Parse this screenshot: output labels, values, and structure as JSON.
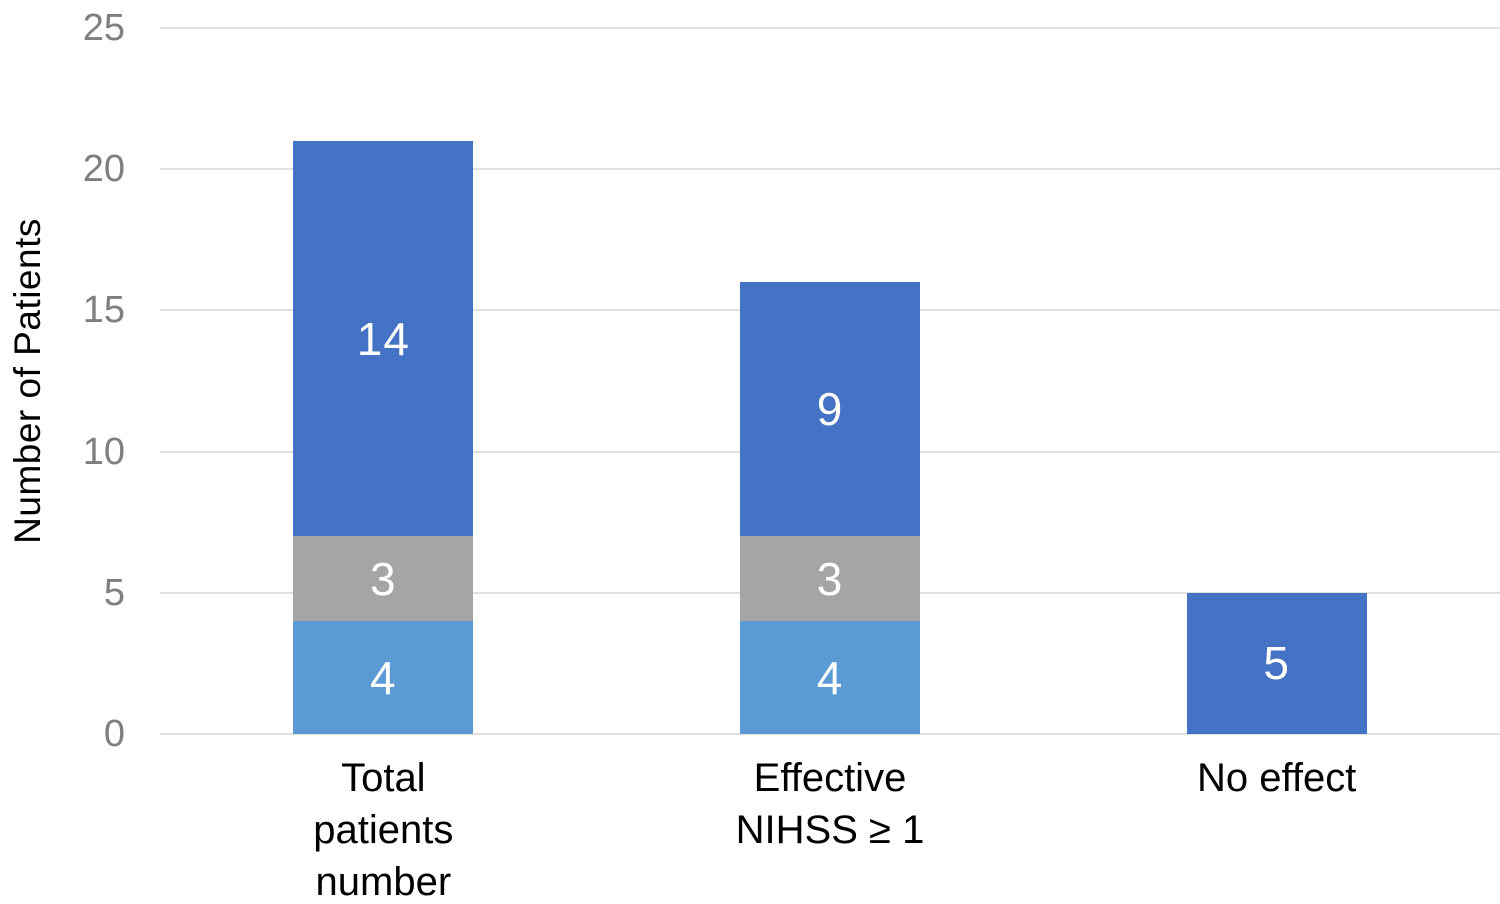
{
  "chart_data": {
    "type": "bar",
    "stacked": true,
    "title": "",
    "xlabel": "",
    "ylabel": "Number of Patients",
    "categories": [
      {
        "lines": [
          "Total",
          "patients",
          "number"
        ]
      },
      {
        "lines": [
          "Effective",
          "NIHSS ≥ 1"
        ]
      },
      {
        "lines": [
          "No effect"
        ]
      }
    ],
    "series": [
      {
        "name": "light-blue-segment",
        "color": "#5B9BD5",
        "values": [
          4,
          4,
          0
        ]
      },
      {
        "name": "gray-segment",
        "color": "#A5A5A5",
        "values": [
          3,
          3,
          0
        ]
      },
      {
        "name": "dark-blue-segment",
        "color": "#4472C4",
        "values": [
          14,
          9,
          5
        ]
      }
    ],
    "yticks": [
      0,
      5,
      10,
      15,
      20,
      25
    ],
    "ylim": [
      0,
      25
    ],
    "grid": true,
    "legend": "none",
    "colors": {
      "background": "#FFFFFF",
      "gridline": "#E0E0E0",
      "tick_label": "#7F7F7F",
      "axis_title": "#000000",
      "category_label": "#000000",
      "data_label": "#FFFFFF"
    }
  }
}
